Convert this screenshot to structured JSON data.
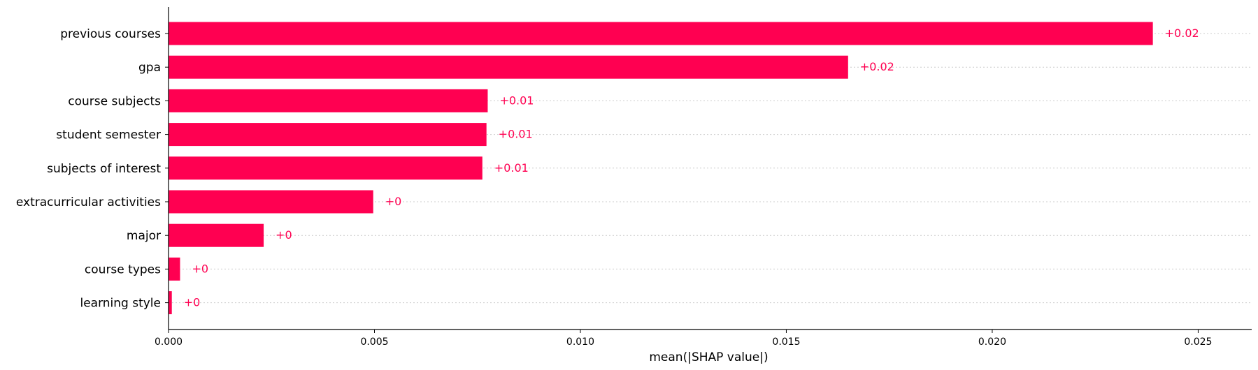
{
  "chart_data": {
    "type": "bar",
    "orientation": "horizontal",
    "categories": [
      "previous courses",
      "gpa",
      "course subjects",
      "student semester",
      "subjects of interest",
      "extracurricular activities",
      "major",
      "course types",
      "learning style"
    ],
    "values": [
      0.0239,
      0.0165,
      0.00775,
      0.00772,
      0.00762,
      0.00497,
      0.00231,
      0.00028,
      8e-05
    ],
    "data_labels": [
      "+0.02",
      "+0.02",
      "+0.01",
      "+0.01",
      "+0.01",
      "+0",
      "+0",
      "+0",
      "+0"
    ],
    "xlabel": "mean(|SHAP value|)",
    "ylabel": "",
    "title": "",
    "xlim": [
      0,
      0.0263
    ],
    "xticks": [
      0,
      0.005,
      0.01,
      0.015,
      0.02,
      0.025
    ],
    "xtick_labels": [
      "0.000",
      "0.005",
      "0.010",
      "0.015",
      "0.020",
      "0.025"
    ],
    "grid": "dotted horizontal lines per row",
    "legend": "none",
    "colors": {
      "bar": "#ff0051",
      "label": "#ff0051",
      "grid": "#cccccc",
      "axis": "#000000"
    }
  }
}
